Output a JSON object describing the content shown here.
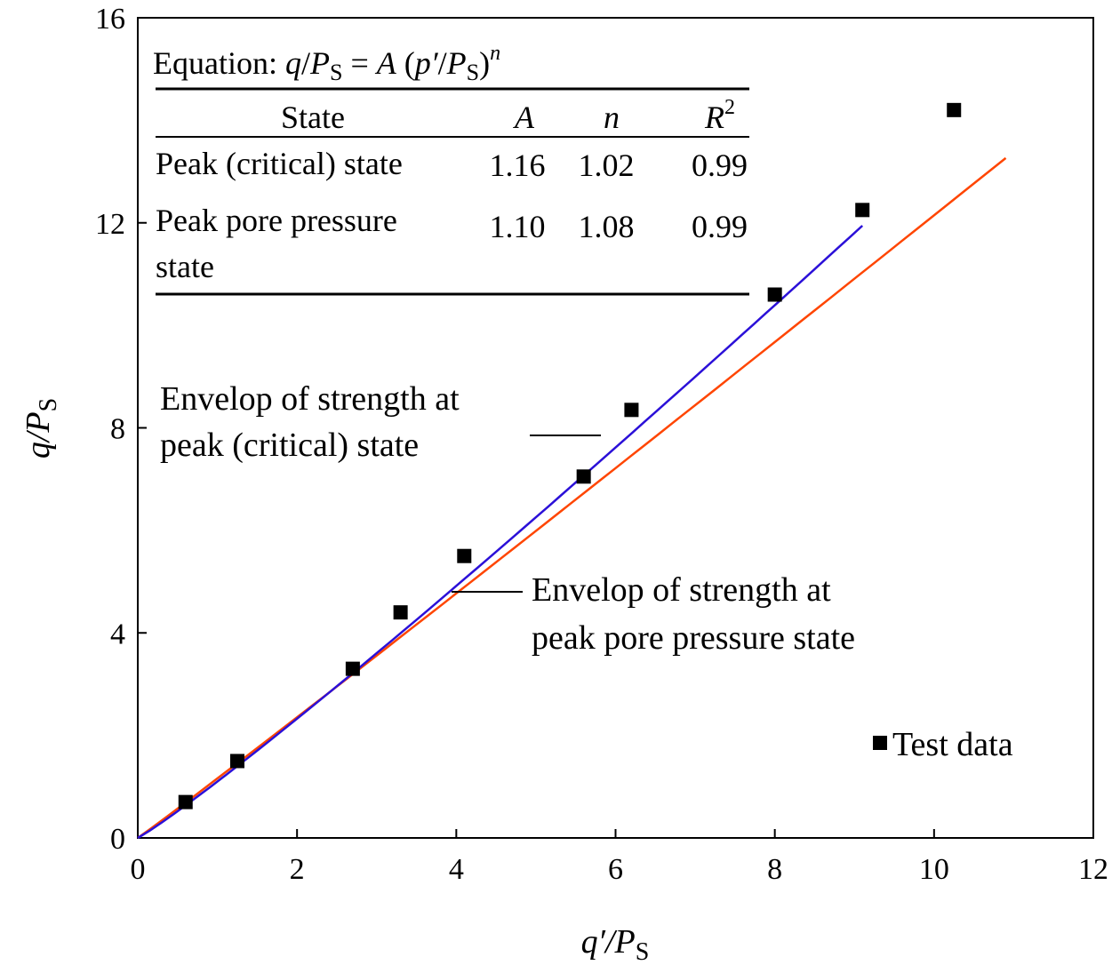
{
  "chart_data": {
    "type": "scatter",
    "xlabel_main": "q′/P",
    "xlabel_sub": "S",
    "ylabel_main": "q/P",
    "ylabel_sub": "S",
    "xlim": [
      0,
      12
    ],
    "ylim": [
      0,
      16
    ],
    "xticks": [
      "0",
      "2",
      "4",
      "6",
      "8",
      "10",
      "12"
    ],
    "yticks": [
      "0",
      "4",
      "8",
      "12",
      "16"
    ],
    "series": [
      {
        "name": "Test data",
        "kind": "scatter",
        "color": "#000000",
        "x": [
          0.6,
          1.25,
          2.7,
          3.3,
          4.1,
          5.6,
          6.2,
          8.0,
          9.1,
          10.25
        ],
        "y": [
          0.7,
          1.5,
          3.3,
          4.4,
          5.5,
          7.05,
          8.35,
          10.6,
          12.25,
          14.2
        ]
      }
    ],
    "fits": [
      {
        "label_line1": "Envelop of strength at",
        "label_line2": "peak (critical) state",
        "color": "#ff4500",
        "A": 1.16,
        "n": 1.02,
        "x_start": 0,
        "x_end": 10.9
      },
      {
        "label_line1": "Envelop of strength at",
        "label_line2": "peak pore pressure state",
        "color": "#2b10d8",
        "A": 1.1,
        "n": 1.08,
        "x_start": 0,
        "x_end": 9.1
      }
    ],
    "table": {
      "equation_prefix": "Equation: ",
      "equation_q": "q",
      "equation_slash1": "/",
      "equation_P": "P",
      "equation_S": "S",
      "equation_mid": " = ",
      "equation_A": "A",
      "equation_open": " (",
      "equation_p": "p′",
      "equation_slash2": "/",
      "equation_P2": "P",
      "equation_S2": "S",
      "equation_close": ")",
      "equation_n": "n",
      "headers": {
        "state": "State",
        "A": "A",
        "n": "n",
        "R": "R",
        "R_sup": "2"
      },
      "rows": [
        {
          "state_line1": "Peak (critical) state",
          "state_line2": "",
          "A": "1.16",
          "n": "1.02",
          "R2": "0.99"
        },
        {
          "state_line1": "Peak pore pressure",
          "state_line2": "state",
          "A": "1.10",
          "n": "1.08",
          "R2": "0.99"
        }
      ]
    },
    "legend": {
      "label": "Test data",
      "position": "bottom-right"
    },
    "grid": false
  }
}
